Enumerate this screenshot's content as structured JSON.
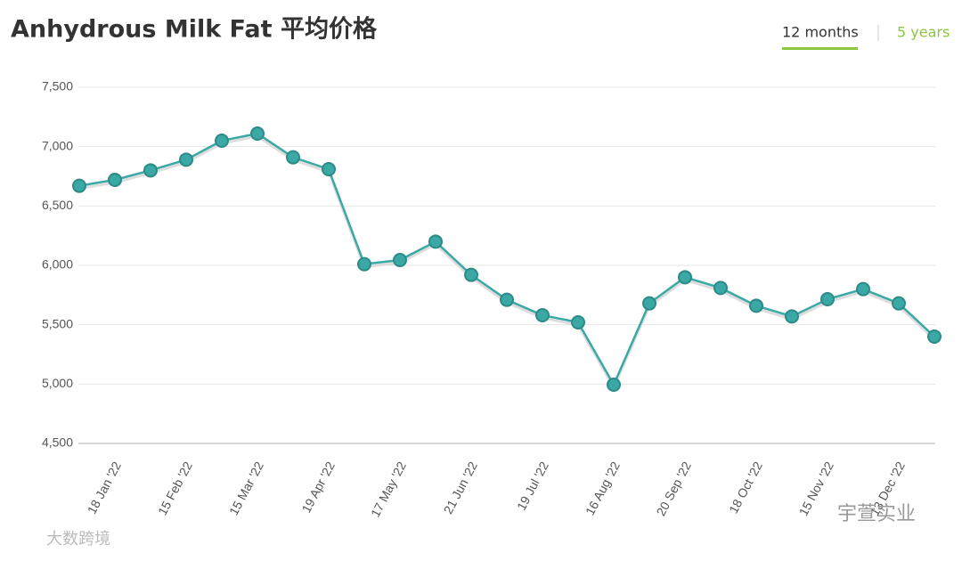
{
  "chart_data": {
    "type": "line",
    "title": "Anhydrous Milk Fat 平均价格",
    "categories": [
      null,
      "18 Jan '22",
      null,
      "15 Feb '22",
      null,
      "15 Mar '22",
      null,
      "19 Apr '22",
      null,
      "17 May '22",
      null,
      "21 Jun '22",
      null,
      "19 Jul '22",
      null,
      "16 Aug '22",
      null,
      "20 Sep '22",
      null,
      "18 Oct '22",
      null,
      "15 Nov '22",
      null,
      "13 Dec '22",
      null
    ],
    "series": [
      {
        "color": "#3aa9a5",
        "values": [
          6670,
          6720,
          6800,
          6890,
          7050,
          7110,
          6910,
          6810,
          6010,
          6045,
          6200,
          5920,
          5710,
          5580,
          5520,
          4995,
          5680,
          5900,
          5810,
          5660,
          5570,
          5715,
          5800,
          5680,
          5400
        ]
      }
    ],
    "ylim": [
      4500,
      7500
    ],
    "yticks": [
      {
        "value": 4500,
        "label": "4,500"
      },
      {
        "value": 5000,
        "label": "5,000"
      },
      {
        "value": 5500,
        "label": "5,500"
      },
      {
        "value": 6000,
        "label": "6,000"
      },
      {
        "value": 6500,
        "label": "6,500"
      },
      {
        "value": 7000,
        "label": "7,000"
      },
      {
        "value": 7500,
        "label": "7,500"
      }
    ],
    "grid": true
  },
  "tabs": [
    "12 months",
    "5 years"
  ],
  "watermarks": [
    "大数跨境",
    "宇萱实业"
  ]
}
